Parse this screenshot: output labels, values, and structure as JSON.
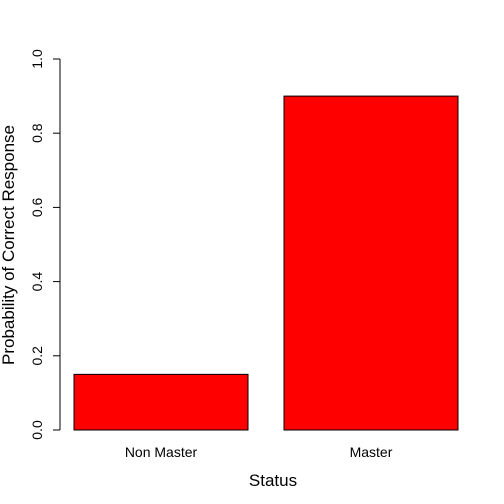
{
  "chart_data": {
    "type": "bar",
    "categories": [
      "Non Master",
      "Master"
    ],
    "values": [
      0.15,
      0.9
    ],
    "xlabel": "Status",
    "ylabel": "Probability of Correct Response",
    "ylim": [
      0,
      1
    ],
    "y_ticks": [
      0.0,
      0.2,
      0.4,
      0.6,
      0.8,
      1.0
    ],
    "y_tick_labels": [
      "0.0",
      "0.2",
      "0.4",
      "0.6",
      "0.8",
      "1.0"
    ],
    "bar_color": "#ff0000",
    "grid": false,
    "legend": "none"
  }
}
